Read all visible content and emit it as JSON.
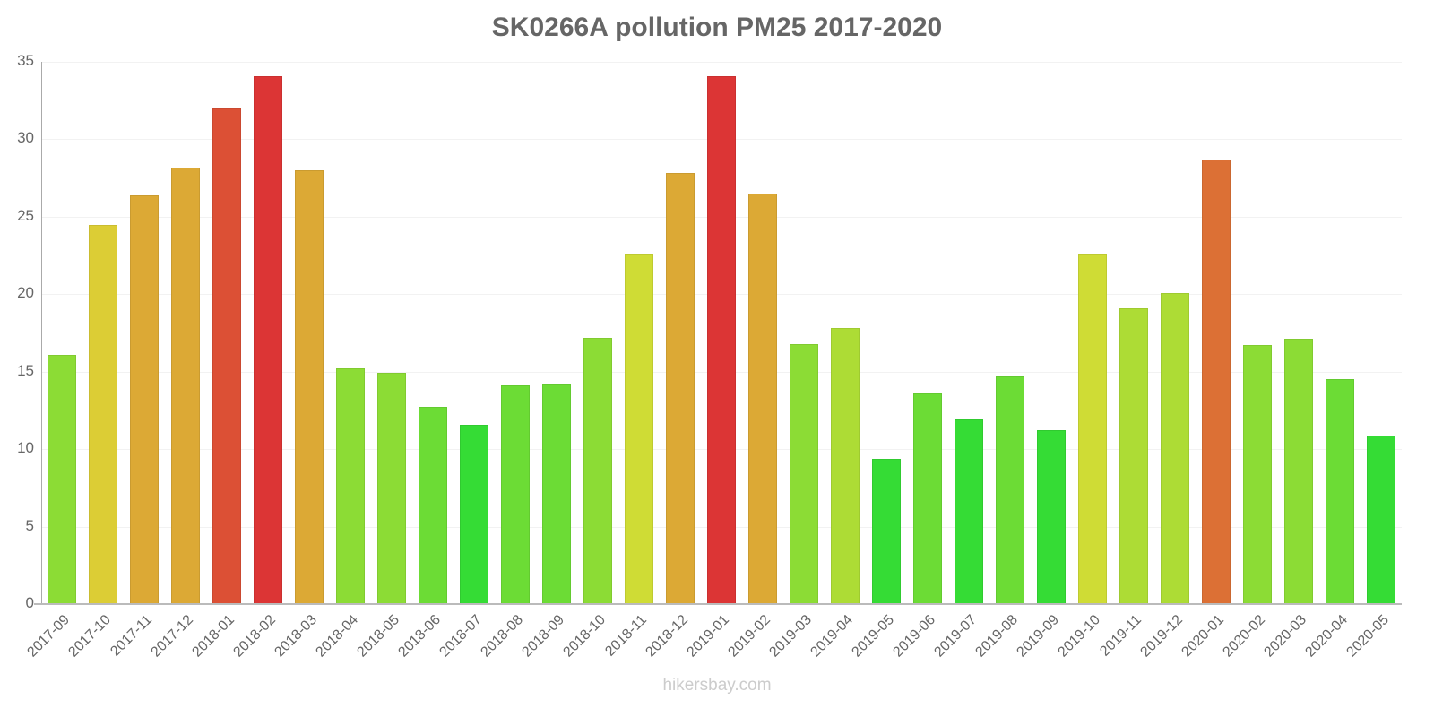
{
  "header": {
    "title": "SK0266A pollution PM25 2017-2020"
  },
  "footer": {
    "watermark": "hikersbay.com"
  },
  "chart_data": {
    "type": "bar",
    "title": "SK0266A pollution PM25 2017-2020",
    "xlabel": "",
    "ylabel": "",
    "ylim": [
      0,
      35
    ],
    "yticks": [
      0,
      5,
      10,
      15,
      20,
      25,
      30,
      35
    ],
    "grid": true,
    "legend": "none",
    "categories": [
      "2017-09",
      "2017-10",
      "2017-11",
      "2017-12",
      "2018-01",
      "2018-02",
      "2018-03",
      "2018-04",
      "2018-05",
      "2018-06",
      "2018-07",
      "2018-08",
      "2018-09",
      "2018-10",
      "2018-11",
      "2018-12",
      "2019-01",
      "2019-02",
      "2019-03",
      "2019-04",
      "2019-05",
      "2019-06",
      "2019-07",
      "2019-08",
      "2019-09",
      "2019-10",
      "2019-11",
      "2019-12",
      "2020-01",
      "2020-02",
      "2020-03",
      "2020-04",
      "2020-05"
    ],
    "values": [
      16.1,
      24.5,
      26.4,
      28.2,
      32.0,
      34.1,
      28.0,
      15.2,
      14.9,
      12.7,
      11.6,
      14.1,
      14.2,
      17.2,
      22.6,
      27.8,
      34.1,
      26.5,
      16.8,
      17.8,
      9.4,
      13.6,
      11.9,
      14.7,
      11.2,
      22.6,
      19.1,
      20.1,
      28.7,
      16.7,
      17.1,
      14.5,
      10.9
    ],
    "colors": [
      "#8cdc35",
      "#dccd35",
      "#dca935",
      "#dca935",
      "#dc5035",
      "#dc3535",
      "#dca935",
      "#8cdc35",
      "#8cdc35",
      "#6cdc35",
      "#35dc35",
      "#6cdc35",
      "#6cdc35",
      "#8cdc35",
      "#cfdc35",
      "#dca935",
      "#dc3535",
      "#dca935",
      "#8cdc35",
      "#addc35",
      "#35dc35",
      "#6cdc35",
      "#35dc35",
      "#6cdc35",
      "#35dc35",
      "#cfdc35",
      "#addc35",
      "#addc35",
      "#dc7035",
      "#8cdc35",
      "#8cdc35",
      "#6cdc35",
      "#35dc35"
    ],
    "watermark": "hikersbay.com"
  }
}
